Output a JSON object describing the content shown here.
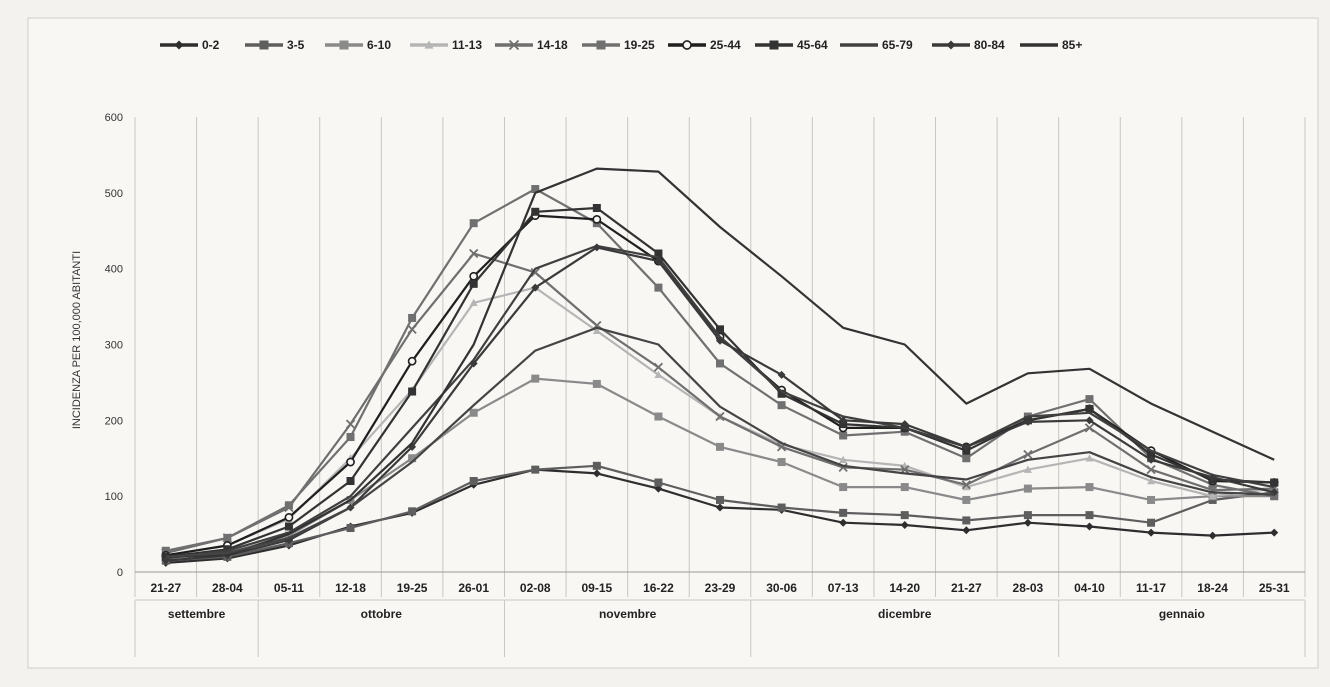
{
  "chart_data": {
    "type": "line",
    "ylabel": "INCIDENZA PER 100,000 ABITANTI",
    "ylim": [
      0,
      600
    ],
    "yticks": [
      0,
      100,
      200,
      300,
      400,
      500,
      600
    ],
    "legend": "top",
    "grid": "vertical",
    "categories": [
      "21-27",
      "28-04",
      "05-11",
      "12-18",
      "19-25",
      "26-01",
      "02-08",
      "09-15",
      "16-22",
      "23-29",
      "30-06",
      "07-13",
      "14-20",
      "21-27",
      "28-03",
      "04-10",
      "11-17",
      "18-24",
      "25-31"
    ],
    "months": [
      {
        "label": "settembre",
        "start": 0,
        "count": 2
      },
      {
        "label": "ottobre",
        "start": 2,
        "count": 4
      },
      {
        "label": "novembre",
        "start": 6,
        "count": 4
      },
      {
        "label": "dicembre",
        "start": 10,
        "count": 5
      },
      {
        "label": "gennaio",
        "start": 15,
        "count": 4
      }
    ],
    "series": [
      {
        "name": "0-2",
        "color": "#2e2e2e",
        "marker": "diamond",
        "values": [
          12,
          18,
          35,
          60,
          78,
          115,
          135,
          130,
          110,
          85,
          82,
          65,
          62,
          55,
          65,
          60,
          52,
          48,
          52
        ]
      },
      {
        "name": "3-5",
        "color": "#5e5e5e",
        "marker": "square",
        "values": [
          15,
          20,
          38,
          58,
          80,
          120,
          135,
          140,
          118,
          95,
          85,
          78,
          75,
          68,
          75,
          75,
          65,
          95,
          105
        ]
      },
      {
        "name": "6-10",
        "color": "#8a8a8a",
        "marker": "square",
        "values": [
          18,
          25,
          48,
          95,
          150,
          210,
          255,
          248,
          205,
          165,
          145,
          112,
          112,
          95,
          110,
          112,
          95,
          100,
          100
        ]
      },
      {
        "name": "11-13",
        "color": "#b5b5b5",
        "marker": "triangle",
        "values": [
          22,
          35,
          70,
          150,
          240,
          355,
          375,
          318,
          260,
          205,
          168,
          148,
          140,
          112,
          135,
          150,
          120,
          100,
          110
        ]
      },
      {
        "name": "14-18",
        "color": "#6f6f6f",
        "marker": "x",
        "values": [
          25,
          45,
          85,
          195,
          320,
          420,
          395,
          325,
          270,
          205,
          165,
          138,
          135,
          115,
          155,
          190,
          135,
          108,
          110
        ]
      },
      {
        "name": "19-25",
        "color": "#707070",
        "marker": "square",
        "values": [
          28,
          45,
          88,
          178,
          335,
          460,
          505,
          460,
          375,
          275,
          220,
          180,
          185,
          150,
          205,
          228,
          150,
          115,
          100
        ]
      },
      {
        "name": "25-44",
        "color": "#1f1f1f",
        "marker": "circle",
        "values": [
          22,
          35,
          72,
          145,
          278,
          390,
          470,
          465,
          410,
          310,
          240,
          190,
          190,
          165,
          200,
          215,
          160,
          120,
          118
        ]
      },
      {
        "name": "45-64",
        "color": "#333333",
        "marker": "square",
        "values": [
          20,
          30,
          60,
          120,
          238,
          380,
          475,
          480,
          420,
          320,
          235,
          195,
          190,
          160,
          200,
          215,
          155,
          122,
          118
        ]
      },
      {
        "name": "65-79",
        "color": "#404040",
        "marker": "none",
        "values": [
          18,
          28,
          52,
          100,
          190,
          280,
          400,
          430,
          415,
          310,
          238,
          205,
          190,
          165,
          205,
          210,
          160,
          128,
          112
        ]
      },
      {
        "name": "80-84",
        "color": "#3a3a3a",
        "marker": "diamond",
        "values": [
          15,
          22,
          42,
          85,
          165,
          275,
          375,
          428,
          410,
          305,
          260,
          200,
          195,
          165,
          198,
          200,
          148,
          125,
          105
        ]
      },
      {
        "name": "85+",
        "color": "#333333",
        "marker": "none",
        "values": [
          20,
          22,
          50,
          95,
          170,
          300,
          500,
          532,
          528,
          455,
          390,
          322,
          300,
          222,
          262,
          268,
          222,
          185,
          148
        ]
      },
      {
        "name": "",
        "color": "#444444",
        "marker": "none",
        "values": [
          20,
          25,
          45,
          85,
          145,
          220,
          292,
          322,
          300,
          218,
          170,
          140,
          130,
          122,
          148,
          158,
          125,
          105,
          102
        ]
      }
    ]
  }
}
